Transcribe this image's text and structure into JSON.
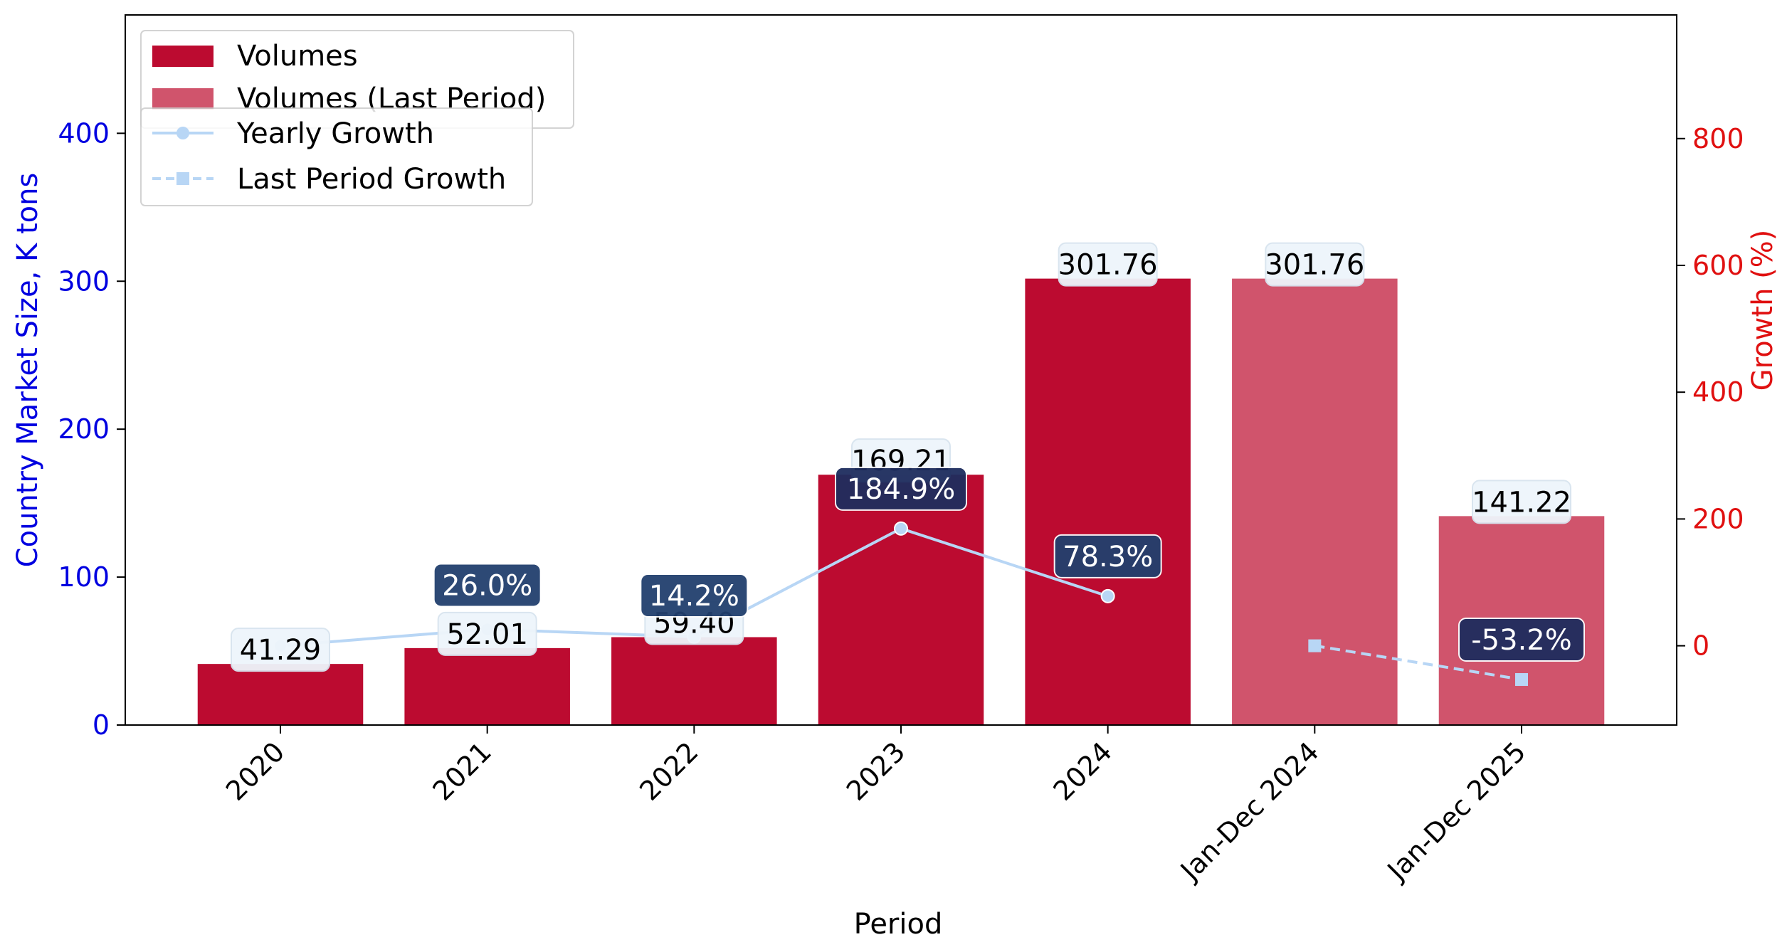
{
  "chart_data": {
    "type": "bar",
    "categories": [
      "2020",
      "2021",
      "2022",
      "2023",
      "2024",
      "Jan-Dec 2024",
      "Jan-Dec 2025"
    ],
    "series": [
      {
        "name": "Volumes",
        "values": [
          41.29,
          52.01,
          59.4,
          169.21,
          301.76,
          null,
          null
        ],
        "color": "#bc0b30",
        "labels": [
          "41.29",
          "52.01",
          "59.40",
          "169.21",
          "301.76",
          "",
          ""
        ]
      },
      {
        "name": "Volumes (Last Period)",
        "values": [
          null,
          null,
          null,
          null,
          null,
          301.76,
          141.22
        ],
        "color": "#d0546c",
        "labels": [
          "",
          "",
          "",
          "",
          "",
          "301.76",
          "141.22"
        ]
      },
      {
        "name": "Yearly Growth",
        "values": [
          0,
          26.0,
          14.2,
          184.9,
          78.3,
          null,
          null
        ],
        "color": "#b8d6f5",
        "labels": [
          "",
          "26.0%",
          "14.2%",
          "184.9%",
          "78.3%",
          "",
          ""
        ]
      },
      {
        "name": "Last Period Growth",
        "values": [
          null,
          null,
          null,
          null,
          null,
          0,
          -53.2
        ],
        "color": "#b8d6f5",
        "labels": [
          "",
          "",
          "",
          "",
          "",
          "",
          "-53.2%"
        ]
      }
    ],
    "xlabel": "Period",
    "ylabel": "Country Market Size, K tons",
    "y2label": "Growth (%)",
    "ylim": [
      0,
      480
    ],
    "y2lim": [
      -125,
      995
    ],
    "yticks": [
      0,
      100,
      200,
      300,
      400
    ],
    "y2ticks": [
      0,
      200,
      400,
      600,
      800
    ],
    "grid": false,
    "legend_position": "top-left",
    "colors": {
      "left_axis": "#0000e0",
      "right_axis": "#e01010",
      "growth_label_bg_dark": "#1e2d5e",
      "growth_label_bg_mid": "#22406e",
      "value_label_bg": "#eef5fb"
    }
  }
}
